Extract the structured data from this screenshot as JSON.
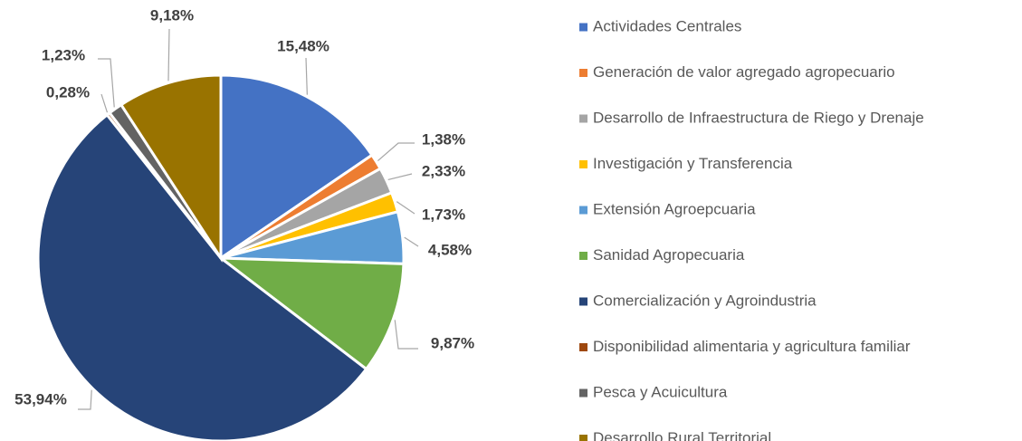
{
  "chart_data": {
    "type": "pie",
    "categories": [
      "Actividades Centrales",
      "Generación de valor agregado agropecuario",
      "Desarrollo de Infraestructura de Riego y Drenaje",
      "Investigación y Transferencia",
      "Extensión Agroepcuaria",
      "Sanidad Agropecuaria",
      "Comercialización y Agroindustria",
      "Disponibilidad alimentaria y agricultura familiar",
      "Pesca y Acuicultura",
      "Desarrollo Rural Territorial"
    ],
    "values": [
      15.48,
      1.38,
      2.33,
      1.73,
      4.58,
      9.87,
      53.94,
      0.28,
      1.23,
      9.18
    ],
    "value_labels": [
      "15,48%",
      "1,38%",
      "2,33%",
      "1,73%",
      "4,58%",
      "9,87%",
      "53,94%",
      "0,28%",
      "1,23%",
      "9,18%"
    ],
    "colors": [
      "#4472c4",
      "#ed7d31",
      "#a5a5a5",
      "#ffc000",
      "#5b9bd5",
      "#70ad47",
      "#264478",
      "#9e480e",
      "#636363",
      "#997300"
    ],
    "legend": "right"
  }
}
